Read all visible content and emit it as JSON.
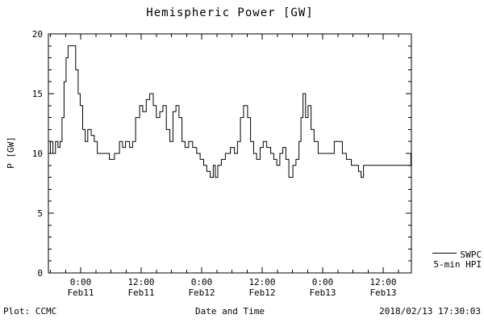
{
  "page": {
    "background": "#ffffff",
    "foreground": "#000000"
  },
  "footer": {
    "credit": "Plot: CCMC",
    "timestamp": "2018/02/13 17:30:03"
  },
  "chart_data": {
    "type": "line",
    "step": true,
    "title": "Hemispheric Power [GW]",
    "xlabel": "Date and Time",
    "ylabel": "P [GW]",
    "line_color": "#000000",
    "axes_color": "#000000",
    "grid": false,
    "legend_position": "outside-right-bottom",
    "legend": {
      "line1": "SWPC",
      "line2": "5-min HPI"
    },
    "ylim": [
      0,
      20
    ],
    "yticks": [
      0,
      5,
      10,
      15,
      20
    ],
    "y_minor": 1,
    "xlim_hours": [
      0,
      72
    ],
    "x_minor_hours": 3,
    "xticks": [
      {
        "t": 6.4,
        "line1": "0:00",
        "line2": "Feb11"
      },
      {
        "t": 18.4,
        "line1": "12:00",
        "line2": "Feb11"
      },
      {
        "t": 30.4,
        "line1": "0:00",
        "line2": "Feb12"
      },
      {
        "t": 42.4,
        "line1": "12:00",
        "line2": "Feb12"
      },
      {
        "t": 54.4,
        "line1": "0:00",
        "line2": "Feb13"
      },
      {
        "t": 66.4,
        "line1": "12:00",
        "line2": "Feb13"
      }
    ],
    "series": [
      {
        "name": "SWPC 5-min HPI",
        "units": "GW",
        "points": [
          [
            0,
            10
          ],
          [
            0.4,
            11
          ],
          [
            0.9,
            10
          ],
          [
            1.4,
            11
          ],
          [
            1.9,
            10.5
          ],
          [
            2.3,
            11
          ],
          [
            2.7,
            13
          ],
          [
            3.1,
            16
          ],
          [
            3.5,
            18
          ],
          [
            3.9,
            19
          ],
          [
            5.0,
            19
          ],
          [
            5.4,
            17
          ],
          [
            5.9,
            15
          ],
          [
            6.3,
            14
          ],
          [
            6.8,
            12
          ],
          [
            7.3,
            11
          ],
          [
            7.8,
            12
          ],
          [
            8.5,
            11.5
          ],
          [
            9.1,
            11
          ],
          [
            9.7,
            10
          ],
          [
            11.6,
            10
          ],
          [
            12.1,
            9.5
          ],
          [
            13.1,
            10
          ],
          [
            14.1,
            11
          ],
          [
            14.7,
            10.5
          ],
          [
            15.3,
            11
          ],
          [
            16.1,
            10.5
          ],
          [
            16.7,
            11
          ],
          [
            17.3,
            13
          ],
          [
            18.1,
            14
          ],
          [
            18.7,
            13.5
          ],
          [
            19.4,
            14.5
          ],
          [
            20.1,
            15
          ],
          [
            20.8,
            14
          ],
          [
            21.4,
            13
          ],
          [
            22.1,
            13.5
          ],
          [
            22.7,
            14
          ],
          [
            23.4,
            12
          ],
          [
            24.1,
            11
          ],
          [
            24.7,
            13.5
          ],
          [
            25.3,
            14
          ],
          [
            25.9,
            13
          ],
          [
            26.5,
            11
          ],
          [
            27.1,
            10.5
          ],
          [
            27.8,
            11
          ],
          [
            28.6,
            10.5
          ],
          [
            29.4,
            10
          ],
          [
            30.1,
            9.5
          ],
          [
            30.8,
            9
          ],
          [
            31.4,
            8.5
          ],
          [
            32.1,
            8
          ],
          [
            32.7,
            9
          ],
          [
            33.1,
            8
          ],
          [
            33.6,
            9
          ],
          [
            34.3,
            9.5
          ],
          [
            35.1,
            10
          ],
          [
            36.1,
            10.5
          ],
          [
            36.9,
            10
          ],
          [
            37.5,
            11
          ],
          [
            38.1,
            13
          ],
          [
            38.7,
            14
          ],
          [
            39.5,
            13
          ],
          [
            40.1,
            11
          ],
          [
            40.7,
            10
          ],
          [
            41.3,
            9.5
          ],
          [
            42.0,
            10.5
          ],
          [
            42.6,
            11
          ],
          [
            43.3,
            10.5
          ],
          [
            44.1,
            10
          ],
          [
            44.7,
            9.5
          ],
          [
            45.3,
            9
          ],
          [
            45.9,
            10
          ],
          [
            46.5,
            10.5
          ],
          [
            47.1,
            9.5
          ],
          [
            47.7,
            8
          ],
          [
            48.5,
            9
          ],
          [
            49.1,
            9.5
          ],
          [
            49.7,
            11
          ],
          [
            50.1,
            13
          ],
          [
            50.5,
            15
          ],
          [
            51.0,
            13
          ],
          [
            51.5,
            14
          ],
          [
            52.1,
            12
          ],
          [
            52.7,
            11
          ],
          [
            53.5,
            10
          ],
          [
            56.7,
            11
          ],
          [
            58.3,
            10
          ],
          [
            59.1,
            9.5
          ],
          [
            60.1,
            9
          ],
          [
            61.5,
            8.5
          ],
          [
            62.0,
            8
          ],
          [
            62.5,
            9
          ],
          [
            71.4,
            9
          ],
          [
            71.9,
            10
          ],
          [
            72,
            10
          ]
        ]
      }
    ]
  }
}
